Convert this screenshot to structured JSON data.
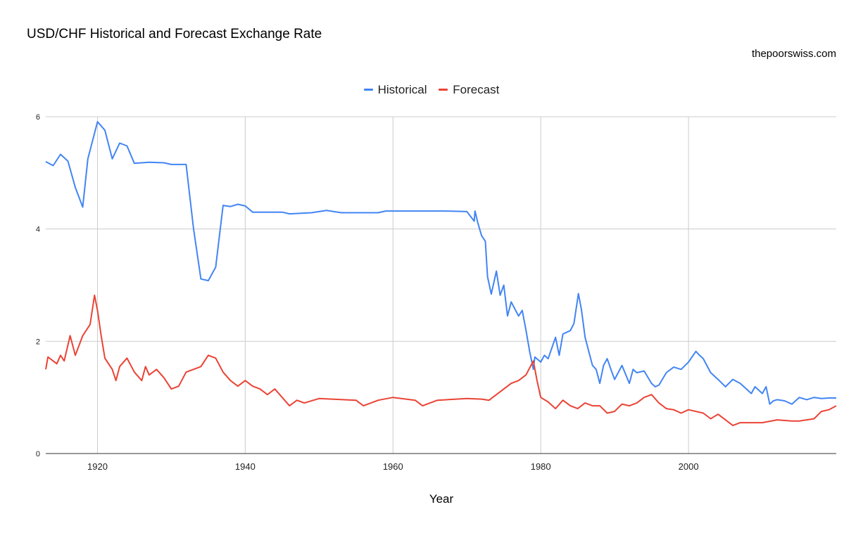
{
  "chart_data": {
    "type": "line",
    "title": "USD/CHF Historical and Forecast Exchange Rate",
    "source_label": "thepoorswiss.com",
    "xlabel": "Year",
    "ylabel": "",
    "xlim": [
      1913,
      2020
    ],
    "ylim": [
      0,
      6
    ],
    "x_ticks": [
      1920,
      1940,
      1960,
      1980,
      2000
    ],
    "y_ticks": [
      0,
      2,
      4,
      6
    ],
    "grid": true,
    "legend_position": "top",
    "series": [
      {
        "name": "Historical",
        "color": "#4285f4",
        "points": [
          [
            1913,
            5.2
          ],
          [
            1914,
            5.13
          ],
          [
            1915,
            5.33
          ],
          [
            1916,
            5.21
          ],
          [
            1917,
            4.74
          ],
          [
            1918,
            4.39
          ],
          [
            1918.7,
            5.25
          ],
          [
            1920,
            5.91
          ],
          [
            1921,
            5.76
          ],
          [
            1922,
            5.25
          ],
          [
            1923,
            5.53
          ],
          [
            1924,
            5.48
          ],
          [
            1925,
            5.17
          ],
          [
            1927,
            5.19
          ],
          [
            1929,
            5.18
          ],
          [
            1930,
            5.15
          ],
          [
            1932,
            5.15
          ],
          [
            1933,
            4.01
          ],
          [
            1934,
            3.11
          ],
          [
            1935,
            3.08
          ],
          [
            1936,
            3.32
          ],
          [
            1937,
            4.42
          ],
          [
            1938,
            4.4
          ],
          [
            1939,
            4.44
          ],
          [
            1940,
            4.41
          ],
          [
            1941,
            4.3
          ],
          [
            1945,
            4.3
          ],
          [
            1946,
            4.27
          ],
          [
            1949,
            4.29
          ],
          [
            1951,
            4.33
          ],
          [
            1953,
            4.29
          ],
          [
            1958,
            4.29
          ],
          [
            1959,
            4.32
          ],
          [
            1962,
            4.32
          ],
          [
            1965,
            4.32
          ],
          [
            1967,
            4.32
          ],
          [
            1970,
            4.31
          ],
          [
            1971,
            4.14
          ],
          [
            1971.1,
            4.32
          ],
          [
            1971.5,
            4.1
          ],
          [
            1972,
            3.88
          ],
          [
            1972.5,
            3.78
          ],
          [
            1972.8,
            3.15
          ],
          [
            1973.3,
            2.84
          ],
          [
            1974,
            3.25
          ],
          [
            1974.5,
            2.82
          ],
          [
            1975,
            3.0
          ],
          [
            1975.5,
            2.45
          ],
          [
            1976,
            2.7
          ],
          [
            1977,
            2.45
          ],
          [
            1977.5,
            2.55
          ],
          [
            1978,
            2.2
          ],
          [
            1978.5,
            1.82
          ],
          [
            1979,
            1.5
          ],
          [
            1979.2,
            1.72
          ],
          [
            1980,
            1.63
          ],
          [
            1980.5,
            1.75
          ],
          [
            1981,
            1.69
          ],
          [
            1982,
            2.07
          ],
          [
            1982.5,
            1.75
          ],
          [
            1983,
            2.13
          ],
          [
            1984,
            2.19
          ],
          [
            1984.5,
            2.32
          ],
          [
            1985.1,
            2.85
          ],
          [
            1985.5,
            2.57
          ],
          [
            1986,
            2.07
          ],
          [
            1986.5,
            1.82
          ],
          [
            1987,
            1.57
          ],
          [
            1987.5,
            1.5
          ],
          [
            1988,
            1.25
          ],
          [
            1988.5,
            1.57
          ],
          [
            1989,
            1.69
          ],
          [
            1989.5,
            1.5
          ],
          [
            1990,
            1.32
          ],
          [
            1991,
            1.57
          ],
          [
            1992,
            1.25
          ],
          [
            1992.5,
            1.5
          ],
          [
            1993,
            1.44
          ],
          [
            1994,
            1.47
          ],
          [
            1995,
            1.25
          ],
          [
            1995.5,
            1.19
          ],
          [
            1996,
            1.22
          ],
          [
            1997,
            1.44
          ],
          [
            1998,
            1.54
          ],
          [
            1999,
            1.5
          ],
          [
            2000,
            1.63
          ],
          [
            2001,
            1.82
          ],
          [
            2001.5,
            1.75
          ],
          [
            2002,
            1.69
          ],
          [
            2003,
            1.44
          ],
          [
            2004,
            1.32
          ],
          [
            2005,
            1.19
          ],
          [
            2006,
            1.32
          ],
          [
            2007,
            1.25
          ],
          [
            2008,
            1.13
          ],
          [
            2008.5,
            1.07
          ],
          [
            2009,
            1.19
          ],
          [
            2010,
            1.07
          ],
          [
            2010.5,
            1.19
          ],
          [
            2011,
            0.88
          ],
          [
            2011.5,
            0.94
          ],
          [
            2012,
            0.96
          ],
          [
            2013,
            0.94
          ],
          [
            2014,
            0.88
          ],
          [
            2015,
            1.0
          ],
          [
            2016,
            0.96
          ],
          [
            2017,
            1.0
          ],
          [
            2018,
            0.98
          ],
          [
            2019,
            0.99
          ],
          [
            2020,
            0.99
          ]
        ]
      },
      {
        "name": "Forecast",
        "color": "#ea4335",
        "points": [
          [
            1913,
            1.5
          ],
          [
            1913.3,
            1.72
          ],
          [
            1914,
            1.65
          ],
          [
            1914.5,
            1.6
          ],
          [
            1915,
            1.75
          ],
          [
            1915.5,
            1.65
          ],
          [
            1916.3,
            2.1
          ],
          [
            1917,
            1.75
          ],
          [
            1918,
            2.1
          ],
          [
            1919,
            2.3
          ],
          [
            1919.6,
            2.82
          ],
          [
            1920,
            2.55
          ],
          [
            1920.5,
            2.1
          ],
          [
            1921,
            1.7
          ],
          [
            1922,
            1.5
          ],
          [
            1922.5,
            1.3
          ],
          [
            1923,
            1.55
          ],
          [
            1924,
            1.7
          ],
          [
            1925,
            1.45
          ],
          [
            1926,
            1.3
          ],
          [
            1926.5,
            1.55
          ],
          [
            1927,
            1.4
          ],
          [
            1928,
            1.5
          ],
          [
            1929,
            1.35
          ],
          [
            1930,
            1.15
          ],
          [
            1931,
            1.2
          ],
          [
            1932,
            1.45
          ],
          [
            1933,
            1.5
          ],
          [
            1934,
            1.55
          ],
          [
            1935,
            1.75
          ],
          [
            1936,
            1.7
          ],
          [
            1937,
            1.45
          ],
          [
            1938,
            1.3
          ],
          [
            1939,
            1.2
          ],
          [
            1940,
            1.3
          ],
          [
            1941,
            1.2
          ],
          [
            1942,
            1.15
          ],
          [
            1943,
            1.05
          ],
          [
            1944,
            1.15
          ],
          [
            1945,
            1.0
          ],
          [
            1946,
            0.85
          ],
          [
            1947,
            0.95
          ],
          [
            1948,
            0.9
          ],
          [
            1950,
            0.98
          ],
          [
            1955,
            0.95
          ],
          [
            1956,
            0.85
          ],
          [
            1958,
            0.95
          ],
          [
            1960,
            1.0
          ],
          [
            1963,
            0.95
          ],
          [
            1964,
            0.85
          ],
          [
            1966,
            0.95
          ],
          [
            1970,
            0.98
          ],
          [
            1972,
            0.97
          ],
          [
            1973,
            0.95
          ],
          [
            1974,
            1.05
          ],
          [
            1975,
            1.15
          ],
          [
            1976,
            1.25
          ],
          [
            1977,
            1.3
          ],
          [
            1978,
            1.4
          ],
          [
            1979,
            1.65
          ],
          [
            1979.5,
            1.3
          ],
          [
            1980,
            1.0
          ],
          [
            1981,
            0.92
          ],
          [
            1982,
            0.8
          ],
          [
            1983,
            0.95
          ],
          [
            1984,
            0.85
          ],
          [
            1985,
            0.8
          ],
          [
            1986,
            0.9
          ],
          [
            1987,
            0.85
          ],
          [
            1988,
            0.85
          ],
          [
            1989,
            0.72
          ],
          [
            1990,
            0.75
          ],
          [
            1991,
            0.88
          ],
          [
            1992,
            0.85
          ],
          [
            1993,
            0.9
          ],
          [
            1994,
            1.0
          ],
          [
            1995,
            1.05
          ],
          [
            1996,
            0.9
          ],
          [
            1997,
            0.8
          ],
          [
            1998,
            0.78
          ],
          [
            1999,
            0.72
          ],
          [
            2000,
            0.78
          ],
          [
            2002,
            0.72
          ],
          [
            2003,
            0.62
          ],
          [
            2004,
            0.7
          ],
          [
            2005,
            0.6
          ],
          [
            2006,
            0.5
          ],
          [
            2007,
            0.55
          ],
          [
            2008,
            0.55
          ],
          [
            2010,
            0.55
          ],
          [
            2012,
            0.6
          ],
          [
            2014,
            0.58
          ],
          [
            2015,
            0.58
          ],
          [
            2016,
            0.6
          ],
          [
            2017,
            0.62
          ],
          [
            2018,
            0.75
          ],
          [
            2019,
            0.78
          ],
          [
            2020,
            0.85
          ]
        ]
      }
    ]
  }
}
